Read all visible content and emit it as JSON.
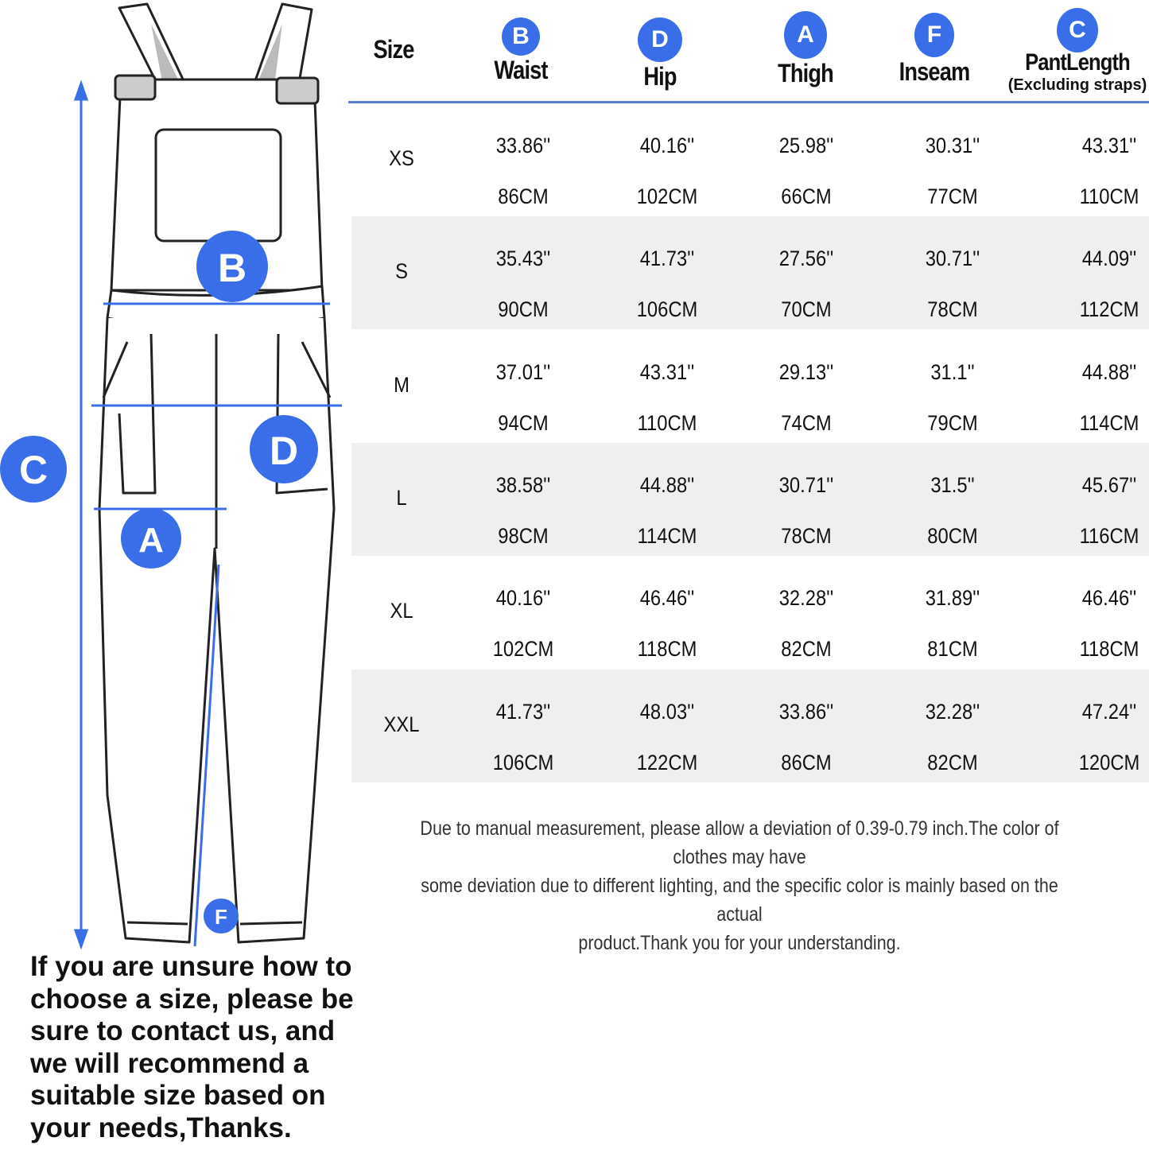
{
  "figure": {
    "markers": [
      "A",
      "B",
      "C",
      "D",
      "F"
    ],
    "accent_color": "#3a6ee8"
  },
  "table": {
    "headers": [
      {
        "badge": "",
        "label": "Size",
        "sub": ""
      },
      {
        "badge": "B",
        "label": "Waist",
        "sub": ""
      },
      {
        "badge": "D",
        "label": "Hip",
        "sub": ""
      },
      {
        "badge": "A",
        "label": "Thigh",
        "sub": ""
      },
      {
        "badge": "F",
        "label": "Inseam",
        "sub": ""
      },
      {
        "badge": "C",
        "label": "PantLength",
        "sub": "(Excluding straps)"
      }
    ],
    "rows": [
      {
        "size": "XS",
        "values": [
          [
            "33.86''",
            "86CM"
          ],
          [
            "40.16''",
            "102CM"
          ],
          [
            "25.98''",
            "66CM"
          ],
          [
            "30.31''",
            "77CM"
          ],
          [
            "43.31''",
            "110CM"
          ]
        ]
      },
      {
        "size": "S",
        "values": [
          [
            "35.43''",
            "90CM"
          ],
          [
            "41.73''",
            "106CM"
          ],
          [
            "27.56''",
            "70CM"
          ],
          [
            "30.71''",
            "78CM"
          ],
          [
            "44.09''",
            "112CM"
          ]
        ]
      },
      {
        "size": "M",
        "values": [
          [
            "37.01''",
            "94CM"
          ],
          [
            "43.31''",
            "110CM"
          ],
          [
            "29.13''",
            "74CM"
          ],
          [
            "31.1''",
            "79CM"
          ],
          [
            "44.88''",
            "114CM"
          ]
        ]
      },
      {
        "size": "L",
        "values": [
          [
            "38.58''",
            "98CM"
          ],
          [
            "44.88''",
            "114CM"
          ],
          [
            "30.71''",
            "78CM"
          ],
          [
            "31.5''",
            "80CM"
          ],
          [
            "45.67''",
            "116CM"
          ]
        ]
      },
      {
        "size": "XL",
        "values": [
          [
            "40.16''",
            "102CM"
          ],
          [
            "46.46''",
            "118CM"
          ],
          [
            "32.28''",
            "82CM"
          ],
          [
            "31.89''",
            "81CM"
          ],
          [
            "46.46''",
            "118CM"
          ]
        ]
      },
      {
        "size": "XXL",
        "values": [
          [
            "41.73''",
            "106CM"
          ],
          [
            "48.03''",
            "122CM"
          ],
          [
            "33.86''",
            "86CM"
          ],
          [
            "32.28''",
            "82CM"
          ],
          [
            "47.24''",
            "120CM"
          ]
        ]
      }
    ]
  },
  "note": {
    "lines": [
      "Due to manual measurement, please allow a deviation of 0.39-0.79 inch.The color of clothes may have",
      "some deviation due to different lighting, and the specific color is mainly based on the actual",
      "product.Thank you for your understanding."
    ]
  },
  "advice": {
    "lines": [
      "If you are unsure how to",
      "choose a size, please be",
      "sure to contact us, and",
      "we will recommend a",
      "suitable size based on",
      "your needs,Thanks."
    ]
  }
}
